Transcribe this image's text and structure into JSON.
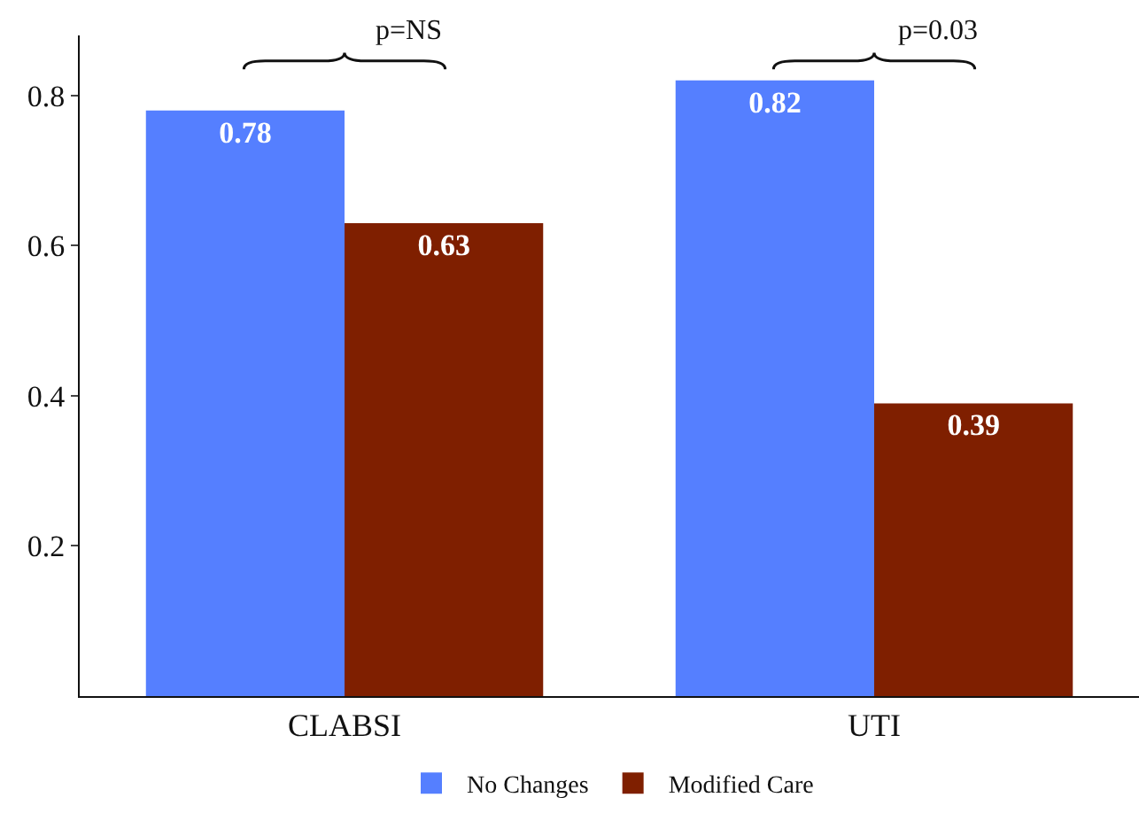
{
  "chart_data": {
    "type": "bar",
    "categories": [
      "CLABSI",
      "UTI"
    ],
    "series": [
      {
        "name": "No Changes",
        "color": "#557fff",
        "values": [
          0.78,
          0.82
        ]
      },
      {
        "name": "Modified Care",
        "color": "#7f1f00",
        "values": [
          0.63,
          0.39
        ]
      }
    ],
    "ylim": [
      0,
      0.88
    ],
    "yticks": [
      0.2,
      0.4,
      0.6,
      0.8
    ],
    "grid": false,
    "legend": "bottom",
    "data_labels": true,
    "annotations": [
      "p=NS",
      "p=0.03"
    ]
  }
}
